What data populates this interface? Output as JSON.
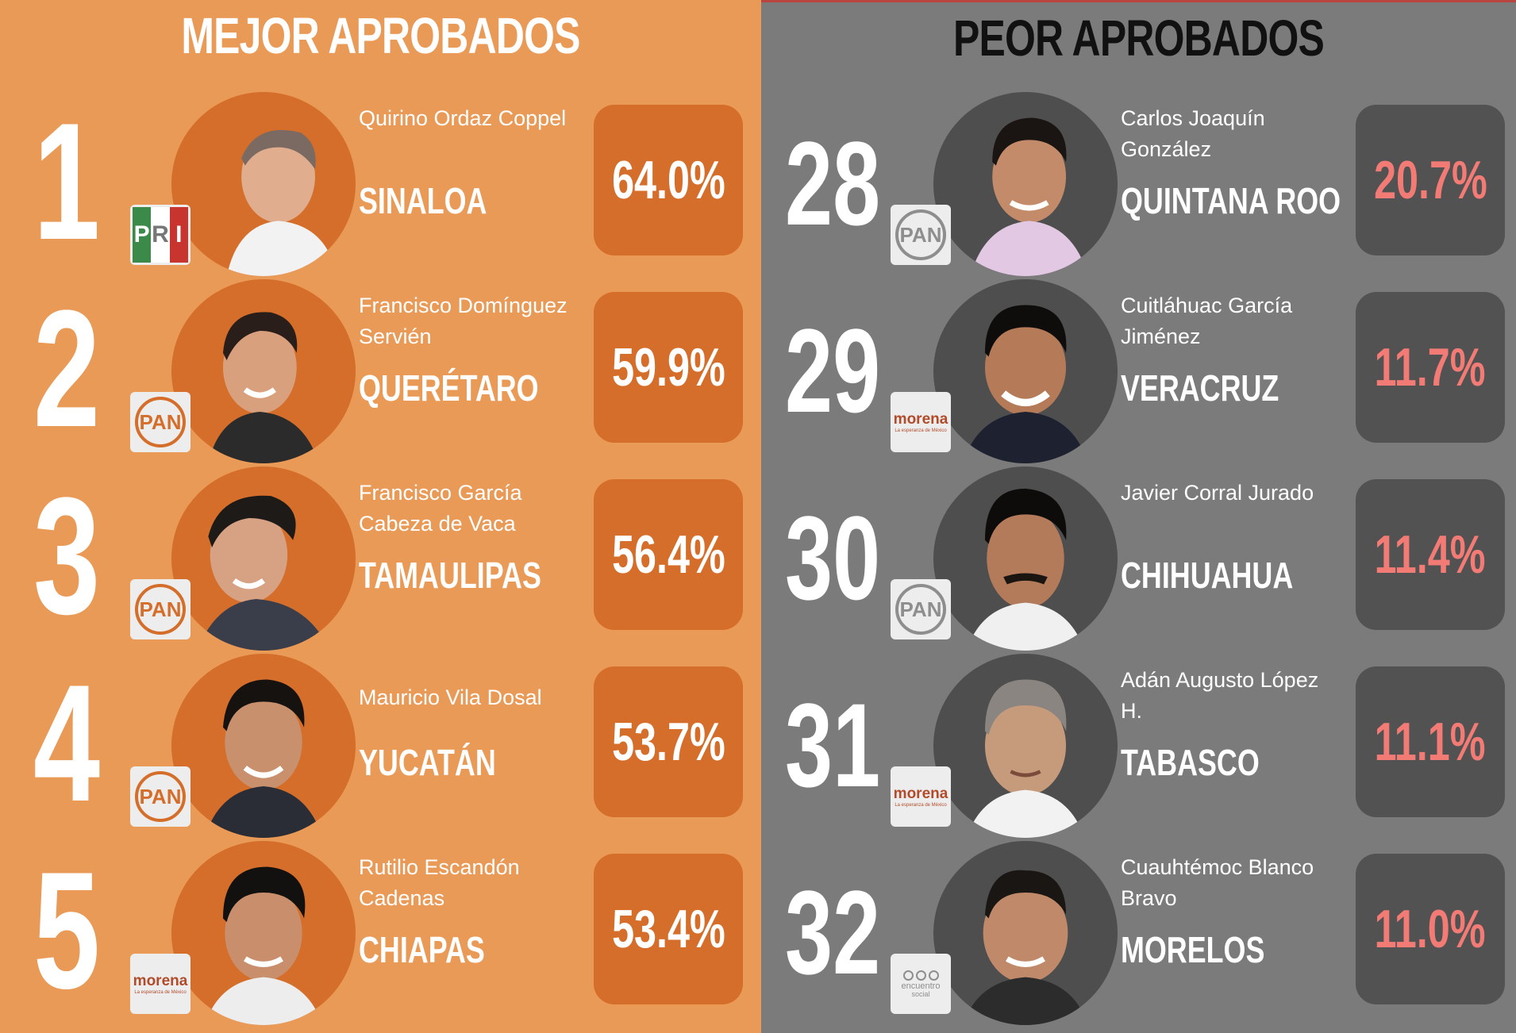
{
  "left": {
    "heading": "MEJOR APROBADOS",
    "items": [
      {
        "rank": "1",
        "name": "Quirino Ordaz Coppel",
        "state": "SINALOA",
        "approval": "64.0%",
        "party": "PRI"
      },
      {
        "rank": "2",
        "name": "Francisco Domínguez Servién",
        "state": "QUERÉTARO",
        "approval": "59.9%",
        "party": "PAN"
      },
      {
        "rank": "3",
        "name": "Francisco García Cabeza de Vaca",
        "state": "TAMAULIPAS",
        "approval": "56.4%",
        "party": "PAN"
      },
      {
        "rank": "4",
        "name": "Mauricio Vila Dosal",
        "state": "YUCATÁN",
        "approval": "53.7%",
        "party": "PAN"
      },
      {
        "rank": "5",
        "name": "Rutilio Escandón Cadenas",
        "state": "CHIAPAS",
        "approval": "53.4%",
        "party": "morena"
      }
    ]
  },
  "right": {
    "heading": "PEOR APROBADOS",
    "items": [
      {
        "rank": "28",
        "name": "Carlos Joaquín González",
        "state": "QUINTANA ROO",
        "approval": "20.7%",
        "party": "PAN"
      },
      {
        "rank": "29",
        "name": "Cuitláhuac García Jiménez",
        "state": "VERACRUZ",
        "approval": "11.7%",
        "party": "morena"
      },
      {
        "rank": "30",
        "name": "Javier Corral Jurado",
        "state": "CHIHUAHUA",
        "approval": "11.4%",
        "party": "PAN"
      },
      {
        "rank": "31",
        "name": "Adán Augusto López H.",
        "state": "TABASCO",
        "approval": "11.1%",
        "party": "morena"
      },
      {
        "rank": "32",
        "name": "Cuauhtémoc Blanco Bravo",
        "state": "MORELOS",
        "approval": "11.0%",
        "party": "encuentro social"
      }
    ]
  },
  "logos": {
    "pri": [
      "P",
      "R",
      "I"
    ],
    "pan": "PAN",
    "morena": "morena",
    "morena_sub": "La esperanza de México",
    "es_top": "encuentro",
    "es_bottom": "social"
  },
  "colors": {
    "left_bg": "#EA9A57",
    "left_accent": "#D46E2A",
    "right_bg": "#7B7B7B",
    "right_accent": "#525252",
    "bad_value": "#F27B76"
  }
}
